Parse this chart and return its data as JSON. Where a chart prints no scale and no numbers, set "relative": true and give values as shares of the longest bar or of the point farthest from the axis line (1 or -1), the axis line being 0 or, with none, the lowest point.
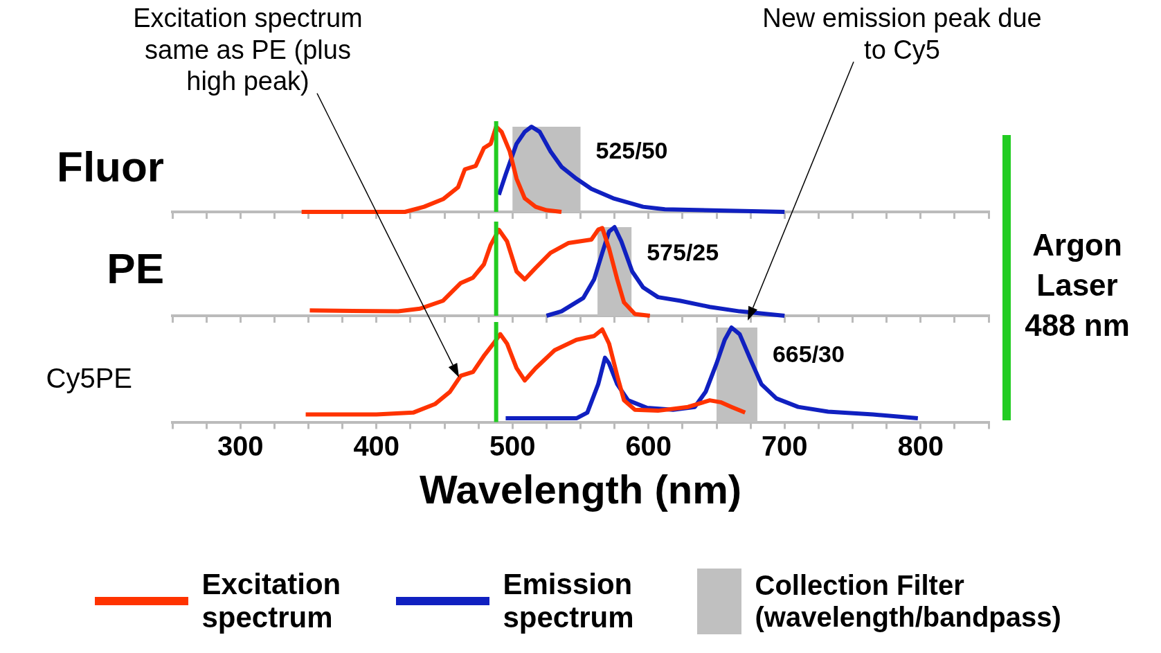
{
  "chart_data": [
    {
      "type": "line",
      "ylabel": "Fluor",
      "relative": true,
      "tick_labels": false,
      "xlim": [
        250,
        850
      ],
      "xticks": [
        {
          "value": 250,
          "label": null
        },
        {
          "value": 275,
          "label": null
        },
        300,
        {
          "value": 325,
          "label": null
        },
        {
          "value": 350,
          "label": null
        },
        {
          "value": 375,
          "label": null
        },
        400,
        {
          "value": 425,
          "label": null
        },
        {
          "value": 450,
          "label": null
        },
        {
          "value": 475,
          "label": null
        },
        500,
        {
          "value": 525,
          "label": null
        },
        {
          "value": 550,
          "label": null
        },
        {
          "value": 575,
          "label": null
        },
        600,
        {
          "value": 625,
          "label": null
        },
        {
          "value": 650,
          "label": null
        },
        {
          "value": 675,
          "label": null
        },
        700,
        {
          "value": 725,
          "label": null
        },
        {
          "value": 750,
          "label": null
        },
        {
          "value": 775,
          "label": null
        },
        800,
        {
          "value": 825,
          "label": null
        },
        {
          "value": 850,
          "label": null
        }
      ],
      "series": [
        {
          "color": "#ff3300",
          "x": [
            345,
            421,
            435,
            449,
            460,
            465,
            473,
            479,
            484,
            488,
            492,
            498,
            503,
            509,
            517,
            525,
            536
          ],
          "values": [
            0,
            0,
            0.06,
            0.15,
            0.29,
            0.5,
            0.54,
            0.75,
            0.8,
            1,
            0.94,
            0.71,
            0.39,
            0.16,
            0.06,
            0.02,
            0
          ]
        },
        {
          "color": "#1020c0",
          "x": [
            490,
            495,
            503,
            509,
            514,
            520,
            528,
            536,
            547,
            558,
            574,
            596,
            612,
            700
          ],
          "values": [
            0.2,
            0.44,
            0.8,
            0.94,
            1,
            0.94,
            0.71,
            0.53,
            0.39,
            0.27,
            0.16,
            0.06,
            0.03,
            0
          ]
        }
      ],
      "bands": [
        {
          "axis": "x",
          "from": 500,
          "to": 550,
          "label": "525/50",
          "color": "#c0c0c0"
        }
      ],
      "ref_lines": [
        {
          "axis": "x",
          "value": 488,
          "color": "#22cc22"
        }
      ]
    },
    {
      "type": "line",
      "ylabel": "PE",
      "relative": true,
      "tick_labels": false,
      "xlim": [
        250,
        850
      ],
      "xticks": [
        {
          "value": 250,
          "label": null
        },
        {
          "value": 275,
          "label": null
        },
        300,
        {
          "value": 325,
          "label": null
        },
        {
          "value": 350,
          "label": null
        },
        {
          "value": 375,
          "label": null
        },
        400,
        {
          "value": 425,
          "label": null
        },
        {
          "value": 450,
          "label": null
        },
        {
          "value": 475,
          "label": null
        },
        500,
        {
          "value": 525,
          "label": null
        },
        {
          "value": 550,
          "label": null
        },
        {
          "value": 575,
          "label": null
        },
        600,
        {
          "value": 625,
          "label": null
        },
        {
          "value": 650,
          "label": null
        },
        {
          "value": 675,
          "label": null
        },
        700,
        {
          "value": 725,
          "label": null
        },
        {
          "value": 750,
          "label": null
        },
        {
          "value": 775,
          "label": null
        },
        800,
        {
          "value": 825,
          "label": null
        },
        {
          "value": 850,
          "label": null
        }
      ],
      "series": [
        {
          "color": "#ff3300",
          "x": [
            351,
            416,
            432,
            449,
            462,
            471,
            479,
            484,
            490,
            496,
            503,
            509,
            517,
            528,
            541,
            558,
            563,
            566,
            571,
            577,
            582,
            590,
            601
          ],
          "values": [
            0.06,
            0.05,
            0.08,
            0.17,
            0.37,
            0.43,
            0.58,
            0.8,
            0.97,
            0.84,
            0.5,
            0.41,
            0.54,
            0.71,
            0.82,
            0.86,
            0.97,
            0.99,
            0.76,
            0.41,
            0.15,
            0.02,
            0
          ]
        },
        {
          "color": "#1020c0",
          "x": [
            525,
            536,
            552,
            560,
            566,
            571,
            575,
            580,
            588,
            596,
            607,
            623,
            645,
            667,
            700
          ],
          "values": [
            0,
            0.05,
            0.2,
            0.41,
            0.71,
            0.95,
            1,
            0.84,
            0.5,
            0.32,
            0.21,
            0.17,
            0.1,
            0.05,
            0
          ]
        }
      ],
      "bands": [
        {
          "axis": "x",
          "from": 562.5,
          "to": 587.5,
          "label": "575/25",
          "color": "#c0c0c0"
        }
      ],
      "ref_lines": [
        {
          "axis": "x",
          "value": 488,
          "color": "#22cc22"
        }
      ],
      "annotations": [
        "New emission peak due to Cy5",
        "Argon Laser 488 nm"
      ]
    },
    {
      "type": "line",
      "ylabel": "Cy5PE",
      "xlabel": "Wavelength (nm)",
      "relative": true,
      "tick_labels": "x",
      "xlim": [
        250,
        850
      ],
      "xticks": [
        {
          "value": 250,
          "label": null
        },
        {
          "value": 275,
          "label": null
        },
        300,
        {
          "value": 325,
          "label": null
        },
        {
          "value": 350,
          "label": null
        },
        {
          "value": 375,
          "label": null
        },
        400,
        {
          "value": 425,
          "label": null
        },
        {
          "value": 450,
          "label": null
        },
        {
          "value": 475,
          "label": null
        },
        500,
        {
          "value": 525,
          "label": null
        },
        {
          "value": 550,
          "label": null
        },
        {
          "value": 575,
          "label": null
        },
        600,
        {
          "value": 625,
          "label": null
        },
        {
          "value": 650,
          "label": null
        },
        {
          "value": 675,
          "label": null
        },
        700,
        {
          "value": 725,
          "label": null
        },
        {
          "value": 750,
          "label": null
        },
        {
          "value": 775,
          "label": null
        },
        800,
        {
          "value": 825,
          "label": null
        },
        {
          "value": 850,
          "label": null
        }
      ],
      "series": [
        {
          "name": "Excitation spectrum",
          "color": "#ff3300",
          "x": [
            348,
            400,
            427,
            443,
            454,
            462,
            471,
            479,
            486,
            491,
            496,
            503,
            509,
            517,
            531,
            547,
            560,
            566,
            571,
            577,
            582,
            590,
            607,
            629,
            645,
            653,
            661,
            671
          ],
          "values": [
            0.08,
            0.08,
            0.1,
            0.19,
            0.32,
            0.49,
            0.53,
            0.7,
            0.83,
            0.93,
            0.83,
            0.57,
            0.44,
            0.57,
            0.76,
            0.87,
            0.91,
            0.98,
            0.83,
            0.49,
            0.23,
            0.13,
            0.12,
            0.16,
            0.23,
            0.21,
            0.16,
            0.1
          ]
        },
        {
          "name": "Emission spectrum",
          "color": "#1020c0",
          "x": [
            495,
            547,
            555,
            563,
            568,
            571,
            577,
            585,
            599,
            618,
            634,
            642,
            650,
            656,
            661,
            667,
            675,
            683,
            694,
            710,
            732,
            765,
            798
          ],
          "values": [
            0.04,
            0.04,
            0.1,
            0.4,
            0.68,
            0.62,
            0.4,
            0.23,
            0.15,
            0.13,
            0.16,
            0.32,
            0.62,
            0.87,
            1,
            0.93,
            0.66,
            0.4,
            0.25,
            0.16,
            0.11,
            0.08,
            0.04
          ]
        }
      ],
      "bands": [
        {
          "axis": "x",
          "from": 650,
          "to": 680,
          "label": "665/30",
          "color": "#c0c0c0"
        }
      ],
      "ref_lines": [
        {
          "axis": "x",
          "value": 488,
          "color": "#22cc22"
        }
      ],
      "annotations": [
        "Excitation spectrum same as PE (plus high peak)",
        "Collection Filter (wavelength/bandpass)"
      ],
      "legend": "bottom"
    }
  ]
}
